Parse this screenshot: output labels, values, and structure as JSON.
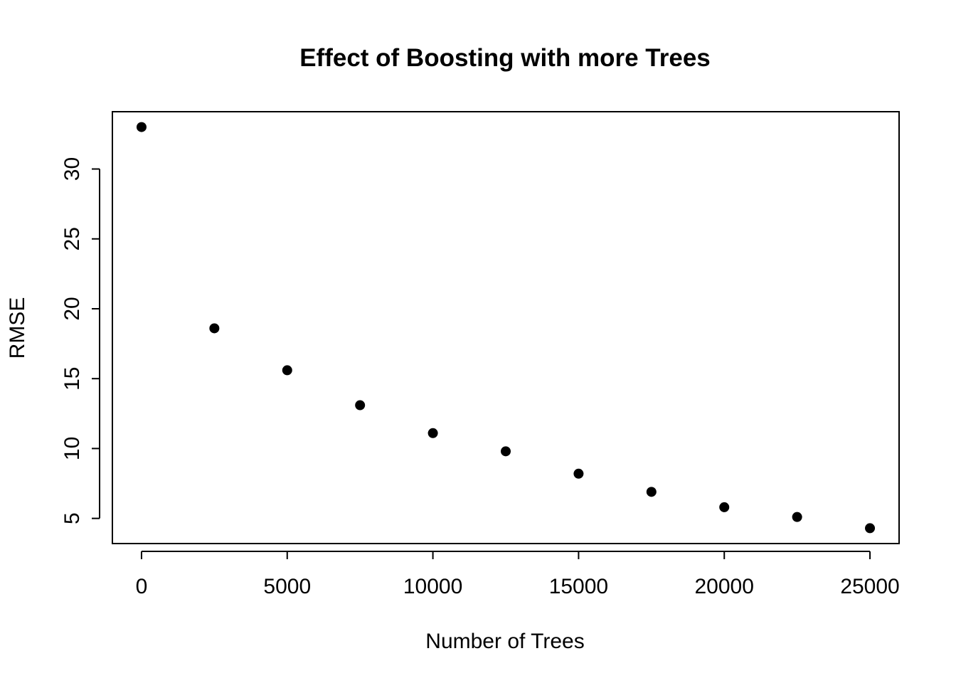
{
  "chart_data": {
    "type": "scatter",
    "title": "Effect of Boosting with more Trees",
    "xlabel": "Number of Trees",
    "ylabel": "RMSE",
    "xlim": [
      -1000,
      26000
    ],
    "ylim": [
      3.2,
      34.1
    ],
    "xticks": [
      0,
      5000,
      10000,
      15000,
      20000,
      25000
    ],
    "yticks": [
      5,
      10,
      15,
      20,
      25,
      30
    ],
    "grid": false,
    "legend": "none",
    "marker_color": "#000000",
    "x": [
      0,
      2500,
      5000,
      7500,
      10000,
      12500,
      15000,
      17500,
      20000,
      22500,
      25000
    ],
    "y": [
      33.0,
      18.6,
      15.6,
      13.1,
      11.1,
      9.8,
      8.2,
      6.9,
      5.8,
      5.1,
      4.3
    ]
  }
}
